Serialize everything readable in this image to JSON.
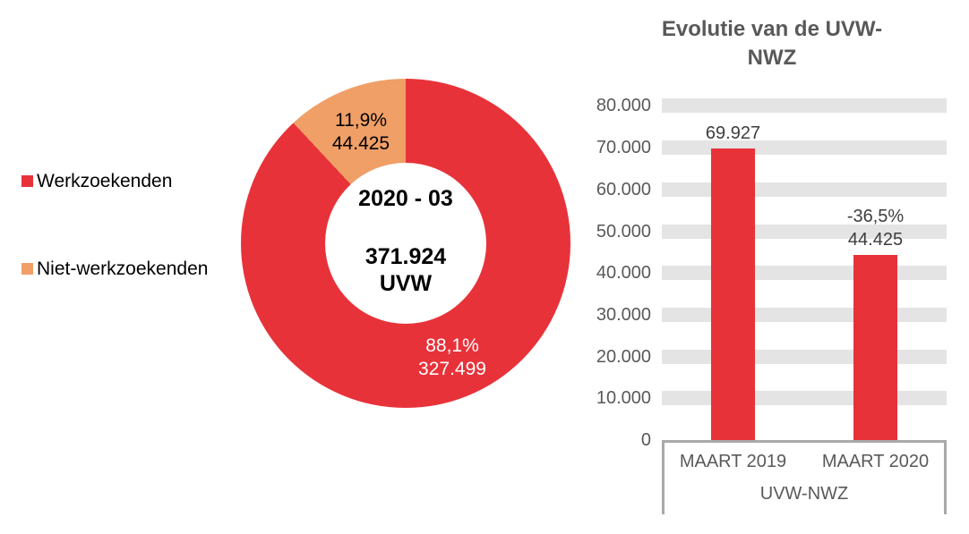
{
  "colors": {
    "red": "#e8323a",
    "orange": "#f09f67",
    "grid": "#e4e4e4",
    "axis_text": "#595959",
    "label_dark": "#3d3d3d",
    "box_border": "#a9a9a9"
  },
  "chart_data": [
    {
      "type": "pie",
      "subtype": "donut",
      "labels": [
        "Werkzoekenden",
        "Niet-werkzoekenden"
      ],
      "values": [
        327499,
        44425
      ],
      "total": 371924,
      "percent_labels": [
        "88,1%",
        "11,9%"
      ],
      "value_labels": [
        "327.499",
        "44.425"
      ],
      "colors": [
        "#e8323a",
        "#f09f67"
      ],
      "center_text": [
        "2020 - 03",
        "371.924",
        "UVW"
      ],
      "legend_position": "left"
    },
    {
      "type": "bar",
      "title": "Evolutie van de UVW-NWZ",
      "title_lines": [
        "Evolutie van de UVW-",
        "NWZ"
      ],
      "categories": [
        "MAART 2019",
        "MAART 2020"
      ],
      "values": [
        69927,
        44425
      ],
      "bar_labels": [
        [
          "69.927"
        ],
        [
          "-36,5%",
          "44.425"
        ]
      ],
      "xlabel": "UVW-NWZ",
      "ylabel": "",
      "ylim": [
        0,
        80000
      ],
      "ytick_step": 10000,
      "ytick_labels": [
        "0",
        "10.000",
        "20.000",
        "30.000",
        "40.000",
        "50.000",
        "60.000",
        "70.000",
        "80.000"
      ],
      "grid": "thick-horizontal-bands",
      "bar_color": "#e8323a",
      "legend_position": "none"
    }
  ]
}
